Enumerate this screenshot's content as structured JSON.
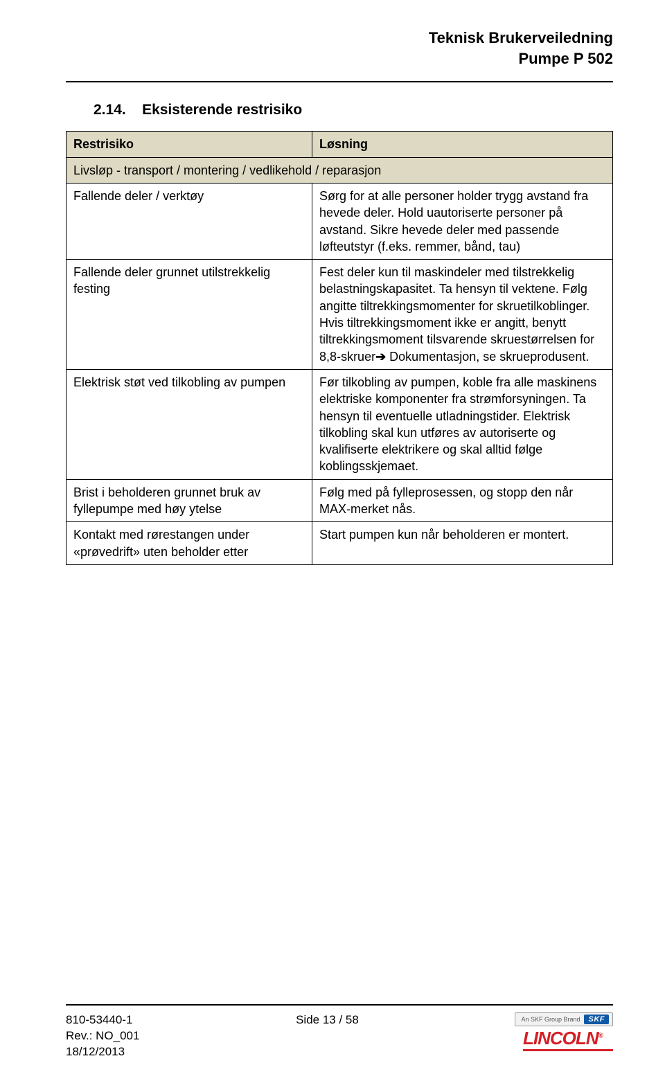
{
  "header": {
    "line1": "Teknisk Brukerveiledning",
    "line2": "Pumpe P 502"
  },
  "section": {
    "number": "2.14.",
    "title": "Eksisterende restrisiko"
  },
  "table": {
    "headers": {
      "left": "Restrisiko",
      "right": "Løsning"
    },
    "section_row": "Livsløp - transport / montering / vedlikehold / reparasjon",
    "rows": [
      {
        "left": "Fallende deler / verktøy",
        "right": "Sørg for at alle personer holder trygg avstand fra hevede deler. Hold uautoriserte personer på avstand. Sikre hevede deler med passende løfteutstyr (f.eks. remmer, bånd, tau)"
      },
      {
        "left": "Fallende deler grunnet utilstrekkelig festing",
        "right_pre": "Fest deler kun til maskindeler med tilstrekkelig belastningskapasitet. Ta hensyn til vektene. Følg angitte tiltrekkingsmomenter for skruetilkoblinger. Hvis tiltrekkingsmoment ikke er angitt, benytt tiltrekkingsmoment tilsvarende skruestørrelsen for 8,8-skruer",
        "right_post": " Dokumentasjon, se skrueprodusent."
      },
      {
        "left": "Elektrisk støt ved tilkobling av pumpen",
        "right": "Før tilkobling av pumpen, koble fra alle maskinens elektriske komponenter fra strømforsyningen. Ta hensyn til eventuelle utladningstider. Elektrisk tilkobling skal kun utføres av autoriserte og kvalifiserte elektrikere og skal alltid følge koblingsskjemaet."
      },
      {
        "left": "Brist i beholderen grunnet bruk av fyllepumpe med høy ytelse",
        "right": "Følg med på fylleprosessen, og stopp den når MAX-merket nås."
      },
      {
        "left": "Kontakt med rørestangen under «prøvedrift» uten beholder etter",
        "right": "Start pumpen kun når beholderen er montert."
      }
    ]
  },
  "footer": {
    "doc_id": "810-53440-1",
    "rev": "Rev.: NO_001",
    "date": "18/12/2013",
    "page": "Side 13 / 58",
    "brand_tag": "An SKF Group Brand",
    "skf": "SKF",
    "lincoln": "LINCOLN",
    "reg": "®"
  },
  "colors": {
    "table_header_bg": "#ddd9c3",
    "lincoln_red": "#d51f26",
    "skf_blue": "#0f58a6"
  }
}
